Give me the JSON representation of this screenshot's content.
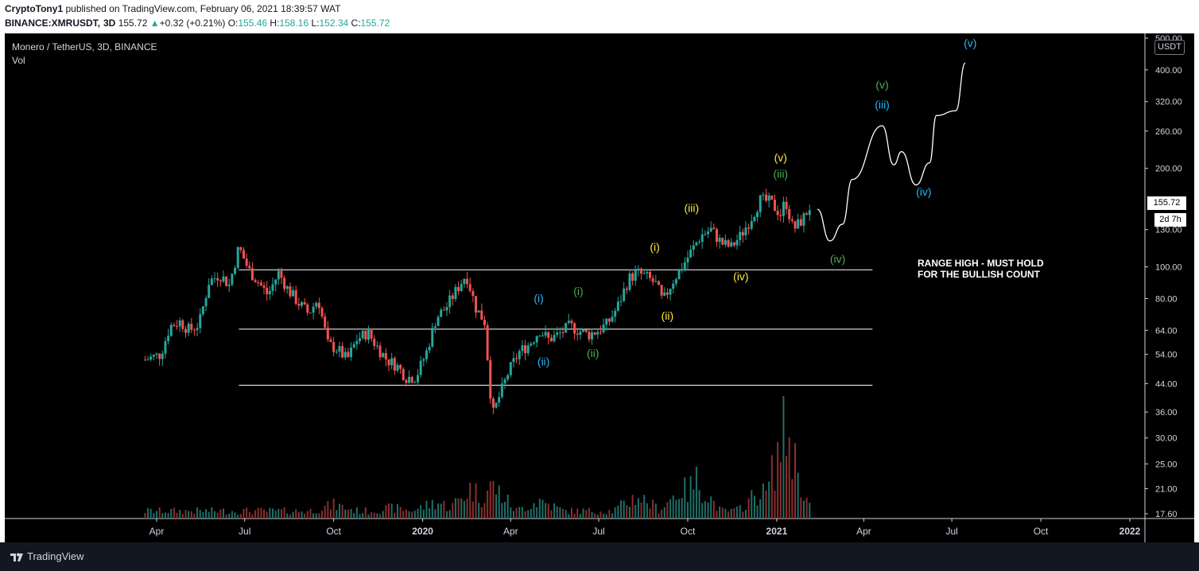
{
  "header": {
    "author": "CryptoTony1",
    "published": "published on TradingView.com, February 06, 2021 18:39:57 WAT",
    "symbol": "BINANCE:XMRUSDT,",
    "timeframe": "3D",
    "last": "155.72",
    "change": "+0.32 (+0.21%)",
    "o_label": "O:",
    "o_value": "155.46",
    "h_label": "H:",
    "h_value": "158.16",
    "l_label": "L:",
    "l_value": "152.34",
    "c_label": "C:",
    "c_value": "155.72"
  },
  "legend": {
    "series_title": "Monero / TetherUS, 3D, BINANCE",
    "indicator": "Vol"
  },
  "price_axis": {
    "unit": "USDT",
    "last_price": "155.72",
    "countdown": "2d 7h"
  },
  "footer": {
    "brand": "TradingView"
  },
  "colors": {
    "up": "#26a69a",
    "down": "#ef5350",
    "cyan_wave": "#29b6f6",
    "green_wave": "#4caf50",
    "yellow_wave": "#ffeb3b",
    "background": "#000000",
    "text": "#d1d4dc"
  },
  "chart_data": {
    "type": "candlestick",
    "title": "Monero / TetherUS, 3D, BINANCE",
    "y_scale": "log",
    "ylim": [
      17.6,
      500
    ],
    "y_ticks": [
      "500.00",
      "400.00",
      "320.00",
      "260.00",
      "200.00",
      "130.00",
      "100.00",
      "80.00",
      "64.00",
      "54.00",
      "44.00",
      "36.00",
      "30.00",
      "25.00",
      "21.00",
      "17.60"
    ],
    "x_ticks": [
      {
        "label": "Apr",
        "date": "2019-04-01"
      },
      {
        "label": "Jul",
        "date": "2019-07-01"
      },
      {
        "label": "Oct",
        "date": "2019-10-01"
      },
      {
        "label": "2020",
        "date": "2020-01-01",
        "bold": true
      },
      {
        "label": "Apr",
        "date": "2020-04-01"
      },
      {
        "label": "Jul",
        "date": "2020-07-01"
      },
      {
        "label": "Oct",
        "date": "2020-10-01"
      },
      {
        "label": "2021",
        "date": "2021-01-01",
        "bold": true
      },
      {
        "label": "Apr",
        "date": "2021-04-01"
      },
      {
        "label": "Jul",
        "date": "2021-07-01"
      },
      {
        "label": "Oct",
        "date": "2021-10-01"
      },
      {
        "label": "2022",
        "date": "2022-01-01",
        "bold": true
      }
    ],
    "close_path": [
      {
        "date": "2019-03-20",
        "close": 52
      },
      {
        "date": "2019-04-05",
        "close": 54
      },
      {
        "date": "2019-04-15",
        "close": 66
      },
      {
        "date": "2019-04-25",
        "close": 68
      },
      {
        "date": "2019-05-05",
        "close": 64
      },
      {
        "date": "2019-05-15",
        "close": 67
      },
      {
        "date": "2019-05-25",
        "close": 90
      },
      {
        "date": "2019-06-05",
        "close": 95
      },
      {
        "date": "2019-06-15",
        "close": 88
      },
      {
        "date": "2019-06-25",
        "close": 115
      },
      {
        "date": "2019-07-05",
        "close": 98
      },
      {
        "date": "2019-07-15",
        "close": 90
      },
      {
        "date": "2019-07-25",
        "close": 82
      },
      {
        "date": "2019-08-05",
        "close": 96
      },
      {
        "date": "2019-08-15",
        "close": 85
      },
      {
        "date": "2019-08-25",
        "close": 78
      },
      {
        "date": "2019-09-05",
        "close": 72
      },
      {
        "date": "2019-09-15",
        "close": 80
      },
      {
        "date": "2019-09-25",
        "close": 58
      },
      {
        "date": "2019-10-05",
        "close": 56
      },
      {
        "date": "2019-10-15",
        "close": 52
      },
      {
        "date": "2019-10-25",
        "close": 60
      },
      {
        "date": "2019-11-05",
        "close": 63
      },
      {
        "date": "2019-11-15",
        "close": 57
      },
      {
        "date": "2019-11-25",
        "close": 52
      },
      {
        "date": "2019-12-05",
        "close": 50
      },
      {
        "date": "2019-12-15",
        "close": 46
      },
      {
        "date": "2019-12-25",
        "close": 46
      },
      {
        "date": "2020-01-05",
        "close": 55
      },
      {
        "date": "2020-01-15",
        "close": 70
      },
      {
        "date": "2020-01-25",
        "close": 75
      },
      {
        "date": "2020-02-05",
        "close": 85
      },
      {
        "date": "2020-02-15",
        "close": 95
      },
      {
        "date": "2020-02-25",
        "close": 75
      },
      {
        "date": "2020-03-05",
        "close": 68
      },
      {
        "date": "2020-03-13",
        "close": 35
      },
      {
        "date": "2020-03-20",
        "close": 40
      },
      {
        "date": "2020-03-30",
        "close": 48
      },
      {
        "date": "2020-04-10",
        "close": 55
      },
      {
        "date": "2020-04-20",
        "close": 58
      },
      {
        "date": "2020-05-01",
        "close": 64
      },
      {
        "date": "2020-05-10",
        "close": 60
      },
      {
        "date": "2020-05-20",
        "close": 62
      },
      {
        "date": "2020-06-01",
        "close": 66
      },
      {
        "date": "2020-06-10",
        "close": 64
      },
      {
        "date": "2020-06-20",
        "close": 62
      },
      {
        "date": "2020-07-01",
        "close": 64
      },
      {
        "date": "2020-07-10",
        "close": 67
      },
      {
        "date": "2020-07-20",
        "close": 75
      },
      {
        "date": "2020-08-01",
        "close": 92
      },
      {
        "date": "2020-08-10",
        "close": 96
      },
      {
        "date": "2020-08-20",
        "close": 93
      },
      {
        "date": "2020-08-30",
        "close": 88
      },
      {
        "date": "2020-09-05",
        "close": 78
      },
      {
        "date": "2020-09-15",
        "close": 90
      },
      {
        "date": "2020-09-25",
        "close": 100
      },
      {
        "date": "2020-10-05",
        "close": 112
      },
      {
        "date": "2020-10-15",
        "close": 125
      },
      {
        "date": "2020-10-25",
        "close": 130
      },
      {
        "date": "2020-11-05",
        "close": 118
      },
      {
        "date": "2020-11-15",
        "close": 115
      },
      {
        "date": "2020-11-25",
        "close": 125
      },
      {
        "date": "2020-12-05",
        "close": 140
      },
      {
        "date": "2020-12-15",
        "close": 160
      },
      {
        "date": "2020-12-25",
        "close": 158
      },
      {
        "date": "2021-01-05",
        "close": 145
      },
      {
        "date": "2021-01-10",
        "close": 160
      },
      {
        "date": "2021-01-18",
        "close": 130
      },
      {
        "date": "2021-01-28",
        "close": 140
      },
      {
        "date": "2021-02-06",
        "close": 155.72
      }
    ],
    "volume": [
      {
        "date": "2019-07-01",
        "value": 0.04
      },
      {
        "date": "2019-10-01",
        "value": 0.09
      },
      {
        "date": "2019-12-01",
        "value": 0.07
      },
      {
        "date": "2020-01-15",
        "value": 0.11
      },
      {
        "date": "2020-02-20",
        "value": 0.2
      },
      {
        "date": "2020-03-13",
        "value": 0.22
      },
      {
        "date": "2020-05-01",
        "value": 0.12
      },
      {
        "date": "2020-08-10",
        "value": 0.15
      },
      {
        "date": "2020-09-25",
        "value": 0.2
      },
      {
        "date": "2020-10-10",
        "value": 0.25
      },
      {
        "date": "2020-12-15",
        "value": 0.18
      },
      {
        "date": "2021-01-05",
        "value": 0.35
      },
      {
        "date": "2021-01-10",
        "value": 0.6
      },
      {
        "date": "2021-01-18",
        "value": 0.2
      }
    ],
    "horizontal_lines": [
      {
        "price": 98,
        "from": "2019-06-25",
        "to": "2021-04-10"
      },
      {
        "price": 64.5,
        "from": "2019-06-25",
        "to": "2021-04-10"
      },
      {
        "price": 43.5,
        "from": "2019-06-25",
        "to": "2021-04-10"
      }
    ],
    "projection_path": [
      {
        "date": "2021-02-12",
        "price": 150
      },
      {
        "date": "2021-02-25",
        "price": 120
      },
      {
        "date": "2021-03-10",
        "price": 135
      },
      {
        "date": "2021-03-20",
        "price": 185
      },
      {
        "date": "2021-04-20",
        "price": 270
      },
      {
        "date": "2021-05-02",
        "price": 205
      },
      {
        "date": "2021-05-10",
        "price": 225
      },
      {
        "date": "2021-05-25",
        "price": 178
      },
      {
        "date": "2021-06-08",
        "price": 208
      },
      {
        "date": "2021-06-15",
        "price": 290
      },
      {
        "date": "2021-07-05",
        "price": 300
      },
      {
        "date": "2021-07-15",
        "price": 420
      }
    ],
    "wave_labels": [
      {
        "text": "(i)",
        "color": "cyan",
        "date": "2020-04-30",
        "price": 78
      },
      {
        "text": "(ii)",
        "color": "cyan",
        "date": "2020-05-05",
        "price": 50
      },
      {
        "text": "(i)",
        "color": "green",
        "date": "2020-06-10",
        "price": 82
      },
      {
        "text": "(ii)",
        "color": "green",
        "date": "2020-06-25",
        "price": 53
      },
      {
        "text": "(i)",
        "color": "yellow",
        "date": "2020-08-28",
        "price": 112
      },
      {
        "text": "(ii)",
        "color": "yellow",
        "date": "2020-09-10",
        "price": 69
      },
      {
        "text": "(iii)",
        "color": "yellow",
        "date": "2020-10-05",
        "price": 147
      },
      {
        "text": "(iv)",
        "color": "yellow",
        "date": "2020-11-25",
        "price": 91
      },
      {
        "text": "(v)",
        "color": "yellow",
        "date": "2021-01-05",
        "price": 210
      },
      {
        "text": "(iii)",
        "color": "green",
        "date": "2021-01-05",
        "price": 187
      },
      {
        "text": "(iv)",
        "color": "green",
        "date": "2021-03-05",
        "price": 103
      },
      {
        "text": "(v)",
        "color": "green",
        "date": "2021-04-20",
        "price": 350
      },
      {
        "text": "(iii)",
        "color": "cyan",
        "date": "2021-04-20",
        "price": 305
      },
      {
        "text": "(iv)",
        "color": "cyan",
        "date": "2021-06-02",
        "price": 165
      },
      {
        "text": "(v)",
        "color": "cyan",
        "date": "2021-07-20",
        "price": 470
      }
    ],
    "annotation": {
      "line1": "RANGE HIGH - MUST HOLD",
      "line2": "FOR THE BULLISH COUNT"
    }
  }
}
